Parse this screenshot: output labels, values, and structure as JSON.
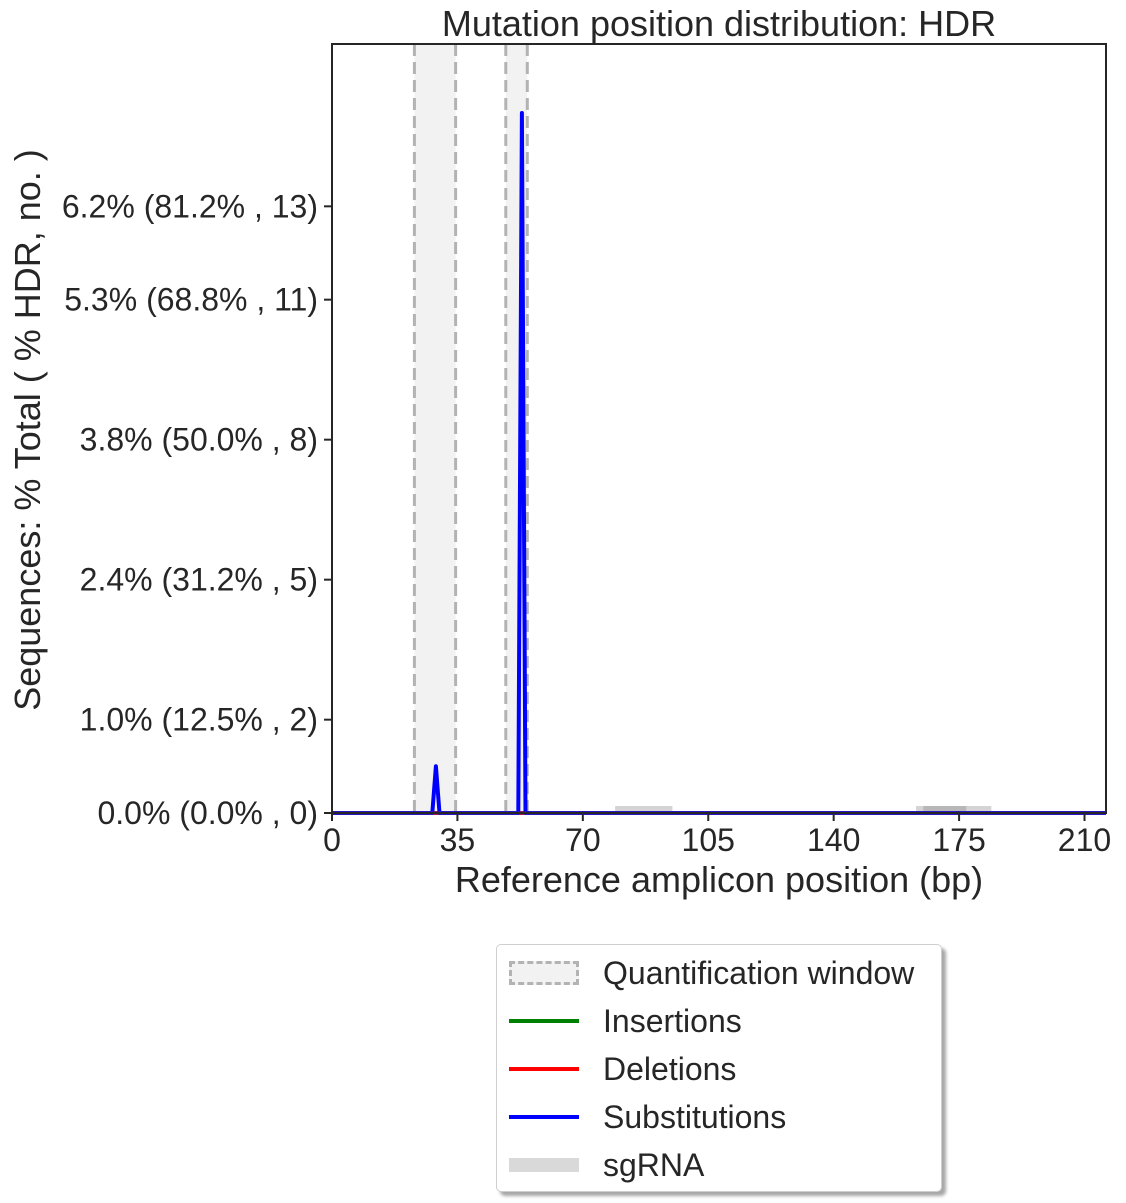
{
  "chart_data": {
    "type": "line",
    "title": "Mutation position distribution: HDR",
    "xlabel": "Reference amplicon position (bp)",
    "ylabel": "Sequences: % Total ( % HDR, no. )",
    "xlim": [
      0,
      216
    ],
    "ylim": [
      0,
      15
    ],
    "x_ticks": [
      0,
      35,
      70,
      105,
      140,
      175,
      210
    ],
    "y_ticks": [
      {
        "value": 0,
        "label": "0.0% (0.0% , 0)"
      },
      {
        "value": 2,
        "label": "1.0% (12.5% , 2)"
      },
      {
        "value": 5,
        "label": "2.4% (31.2% , 5)"
      },
      {
        "value": 8,
        "label": "3.8% (50.0% , 8)"
      },
      {
        "value": 11,
        "label": "5.3% (68.8% , 11)"
      },
      {
        "value": 13,
        "label": "6.2% (81.2% , 13)"
      }
    ],
    "quantification_windows": [
      [
        23,
        34.5
      ],
      [
        48.5,
        54.5
      ]
    ],
    "sgrna_regions": [
      [
        79,
        95
      ],
      [
        163,
        184
      ]
    ],
    "series": [
      {
        "name": "Insertions",
        "color": "#008000",
        "points": [
          [
            0,
            0
          ],
          [
            216,
            0
          ]
        ]
      },
      {
        "name": "Deletions",
        "color": "#ff0000",
        "points": [
          [
            0,
            0
          ],
          [
            216,
            0
          ]
        ]
      },
      {
        "name": "Substitutions",
        "color": "#0000ff",
        "points": [
          [
            0,
            0
          ],
          [
            28,
            0
          ],
          [
            29,
            1
          ],
          [
            30,
            0
          ],
          [
            52,
            0
          ],
          [
            53,
            15
          ],
          [
            54,
            0
          ],
          [
            216,
            0
          ]
        ]
      }
    ],
    "legend": {
      "placement": "below",
      "items": [
        {
          "label": "Quantification window",
          "kind": "window"
        },
        {
          "label": "Insertions",
          "kind": "line",
          "color": "#008000"
        },
        {
          "label": "Deletions",
          "kind": "line",
          "color": "#ff0000"
        },
        {
          "label": "Substitutions",
          "kind": "line",
          "color": "#0000ff"
        },
        {
          "label": "sgRNA",
          "kind": "sgrna"
        }
      ]
    }
  }
}
